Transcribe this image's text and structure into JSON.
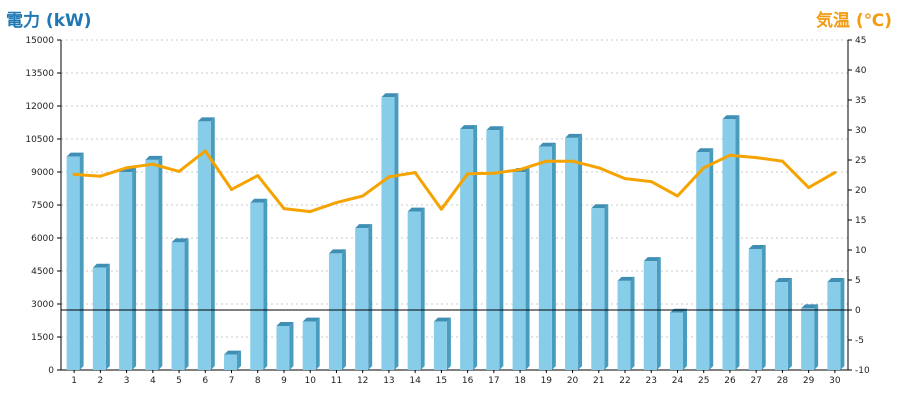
{
  "chart_data": {
    "type": "bar",
    "title_left": "電力 (kW)",
    "title_right": "気温 (℃)",
    "categories": [
      "1",
      "2",
      "3",
      "4",
      "5",
      "6",
      "7",
      "8",
      "9",
      "10",
      "11",
      "12",
      "13",
      "14",
      "15",
      "16",
      "17",
      "18",
      "19",
      "20",
      "21",
      "22",
      "23",
      "24",
      "25",
      "26",
      "27",
      "28",
      "29",
      "30"
    ],
    "series": [
      {
        "axis": "left",
        "type": "bar",
        "values": [
          9700,
          4650,
          9000,
          9550,
          5800,
          11300,
          700,
          7600,
          2000,
          2200,
          5300,
          6450,
          12400,
          7200,
          2200,
          10950,
          10900,
          9000,
          10150,
          10550,
          7350,
          4050,
          4950,
          2600,
          9900,
          11400,
          5500,
          4000,
          2800,
          4000
        ]
      },
      {
        "axis": "right",
        "type": "line",
        "values": [
          22.6,
          22.3,
          23.7,
          24.3,
          23.1,
          26.5,
          20.1,
          22.4,
          16.9,
          16.4,
          17.9,
          19.0,
          22.2,
          22.9,
          16.8,
          22.7,
          22.8,
          23.4,
          24.8,
          24.8,
          23.7,
          21.9,
          21.4,
          19.0,
          23.7,
          25.8,
          25.4,
          24.8,
          20.4,
          22.9
        ]
      }
    ],
    "y_left": {
      "ylim": [
        0,
        15000
      ],
      "ticks": [
        "0",
        "1500",
        "3000",
        "4500",
        "6000",
        "7500",
        "9000",
        "10500",
        "12000",
        "13500",
        "15000"
      ]
    },
    "y_right": {
      "ylim": [
        -10,
        45
      ],
      "ticks": [
        "-10",
        "-5",
        "0",
        "5",
        "10",
        "15",
        "20",
        "25",
        "30",
        "35",
        "40",
        "45"
      ]
    },
    "grid": true,
    "reference_line_right_value": 0,
    "colors": {
      "bar_face": "#87cdea",
      "bar_side": "#4a9cbf",
      "bar_top": "#3f8fb4",
      "line": "#f5a300",
      "grid": "#c8c8c8",
      "axis": "#000000",
      "title_left": "#1f78b4",
      "title_right": "#f39c12"
    }
  }
}
